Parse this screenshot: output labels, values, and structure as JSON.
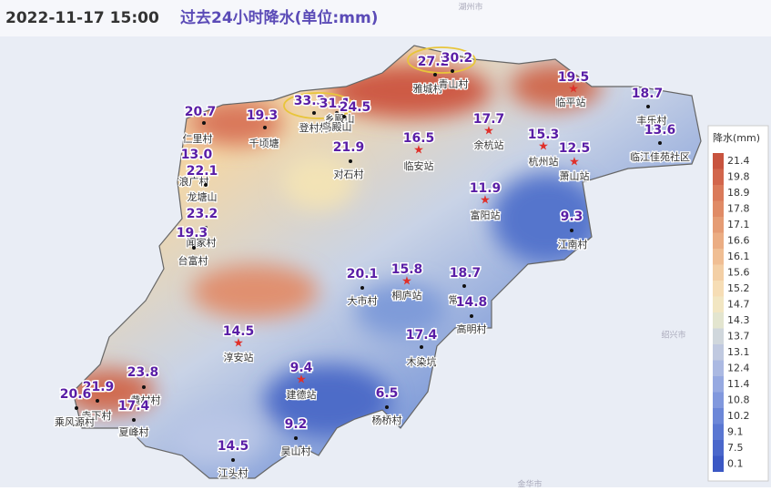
{
  "header": {
    "time": "2022-11-17 15:00",
    "title": "过去24小时降水(单位:mm)"
  },
  "cities": [
    "湖州市",
    "绍兴市",
    "金华市"
  ],
  "stations": [
    {
      "value": "27.2",
      "name": "雅城村"
    },
    {
      "value": "30.2",
      "name": "青山村"
    },
    {
      "value": "33.3",
      "name": "登村村"
    },
    {
      "value": "31.1",
      "name": "乡殿山"
    },
    {
      "value": "24.5",
      "name": "鸟殿山"
    },
    {
      "value": "20.7",
      "name": "仁里村"
    },
    {
      "value": "19.3",
      "name": "千顷塘"
    },
    {
      "value": "21.9",
      "name": "对石村"
    },
    {
      "value": "16.5",
      "name": "临安站"
    },
    {
      "value": "17.7",
      "name": "余杭站"
    },
    {
      "value": "19.5",
      "name": "临平站"
    },
    {
      "value": "18.7",
      "name": "丰乐村"
    },
    {
      "value": "15.3",
      "name": "杭州站"
    },
    {
      "value": "13.6",
      "name": "临江佳苑社区"
    },
    {
      "value": "12.5",
      "name": "萧山站"
    },
    {
      "value": "11.9",
      "name": "富阳站"
    },
    {
      "value": "9.3",
      "name": "江南村"
    },
    {
      "value": "13.0",
      "name": "浪广村"
    },
    {
      "value": "22.1",
      "name": "龙塘山"
    },
    {
      "value": "23.2",
      "name": "闻家村"
    },
    {
      "value": "19.3",
      "name": "台富村"
    },
    {
      "value": "20.1",
      "name": "大市村"
    },
    {
      "value": "15.8",
      "name": "桐庐站"
    },
    {
      "value": "18.7",
      "name": "常"
    },
    {
      "value": "14.8",
      "name": "高明村"
    },
    {
      "value": "14.5",
      "name": "淳安站"
    },
    {
      "value": "17.4",
      "name": "木染坑"
    },
    {
      "value": "9.4",
      "name": "建德站"
    },
    {
      "value": "6.5",
      "name": "杨桥村"
    },
    {
      "value": "23.8",
      "name": "黄村村"
    },
    {
      "value": "21.9",
      "name": "寺下村"
    },
    {
      "value": "20.6",
      "name": "乘风源村"
    },
    {
      "value": "17.4",
      "name": "夏峰村"
    },
    {
      "value": "9.2",
      "name": "昊山村"
    },
    {
      "value": "14.5",
      "name": "江头村"
    }
  ],
  "legend": {
    "title": "降水(mm)",
    "labels": [
      21.4,
      19.8,
      18.9,
      17.8,
      17.1,
      16.6,
      16.1,
      15.6,
      15.2,
      14.7,
      14.3,
      13.7,
      13.1,
      12.4,
      11.4,
      10.8,
      10.2,
      9.1,
      7.5,
      0.1
    ]
  }
}
